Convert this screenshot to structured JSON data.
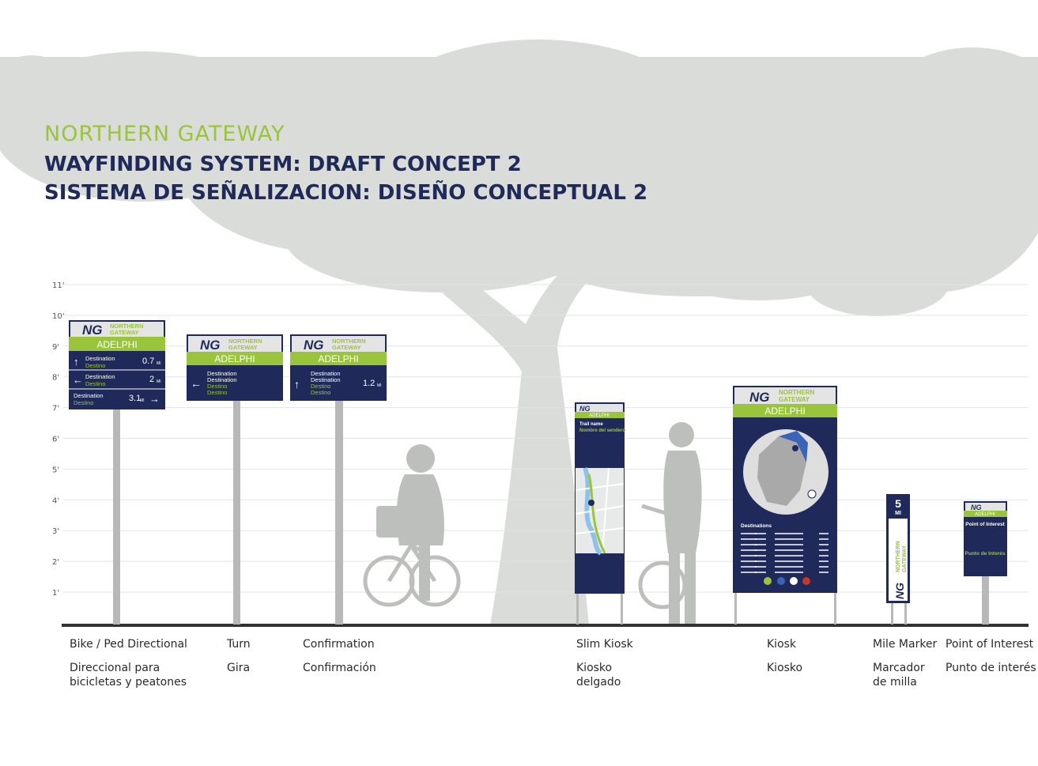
{
  "colors": {
    "accent_green": "#9ac43c",
    "navy": "#1f2a5a",
    "tree": "#d9dcd8",
    "figure": "#bdbfbd",
    "gridline": "#e3e3e3",
    "ground": "#333333",
    "post": "#b8b8b8"
  },
  "title": {
    "line1": "NORTHERN GATEWAY",
    "line2": "WAYFINDING SYSTEM: DRAFT CONCEPT 2",
    "line3": "SISTEMA DE SEÑALIZACION: DISEÑO CONCEPTUAL 2"
  },
  "scale": {
    "ticks": [
      "11'",
      "10'",
      "9'",
      "8'",
      "7'",
      "6'",
      "5'",
      "4'",
      "3'",
      "2'",
      "1'"
    ]
  },
  "logo": {
    "initials": "NG",
    "name_line1": "NORTHERN",
    "name_line2": "GATEWAY"
  },
  "signs": {
    "bike": {
      "place": "ADELPHI",
      "rows": [
        {
          "arrow": "↑",
          "dest": "Destination",
          "destino": "Destino",
          "dist": "0.7",
          "unit": "MI"
        },
        {
          "arrow": "←",
          "dest": "Destination",
          "destino": "Destino",
          "dist": "2",
          "unit": "MI"
        },
        {
          "arrow": "→",
          "dest": "Destination",
          "destino": "Destino",
          "dist": "3.1",
          "unit": "MI"
        }
      ]
    },
    "turn": {
      "place": "ADELPHI",
      "arrow": "←",
      "lines": [
        "Destination",
        "Destination"
      ],
      "lines_es": [
        "Destino",
        "Destino"
      ]
    },
    "confirm": {
      "place": "ADELPHI",
      "arrow": "↑",
      "lines": [
        "Destination",
        "Destination"
      ],
      "lines_es": [
        "Destino",
        "Destino"
      ],
      "dist": "1.2",
      "unit": "MI"
    },
    "slim": {
      "place": "ADELPHI",
      "trail": "Trail name",
      "trail_es": "Nombre del sendero"
    },
    "kiosk": {
      "place": "ADELPHI",
      "dest_header": "Destinations"
    },
    "mile": {
      "number": "5",
      "unit": "MI"
    },
    "poi": {
      "place": "ADELPHI",
      "title": "Point of Interest",
      "title_es": "Punto de Interés"
    }
  },
  "labels": [
    {
      "en": "Bike / Ped Directional",
      "es": "Direccional para bicicletas y peatones"
    },
    {
      "en": "Turn",
      "es": "Gira"
    },
    {
      "en": "Confirmation",
      "es": "Confirmación"
    },
    {
      "en": "Slim Kiosk",
      "es": "Kiosko delgado"
    },
    {
      "en": "Kiosk",
      "es": "Kiosko"
    },
    {
      "en": "Mile Marker",
      "es": "Marcador de milla"
    },
    {
      "en": "Point of Interest",
      "es": "Punto de interés"
    }
  ]
}
